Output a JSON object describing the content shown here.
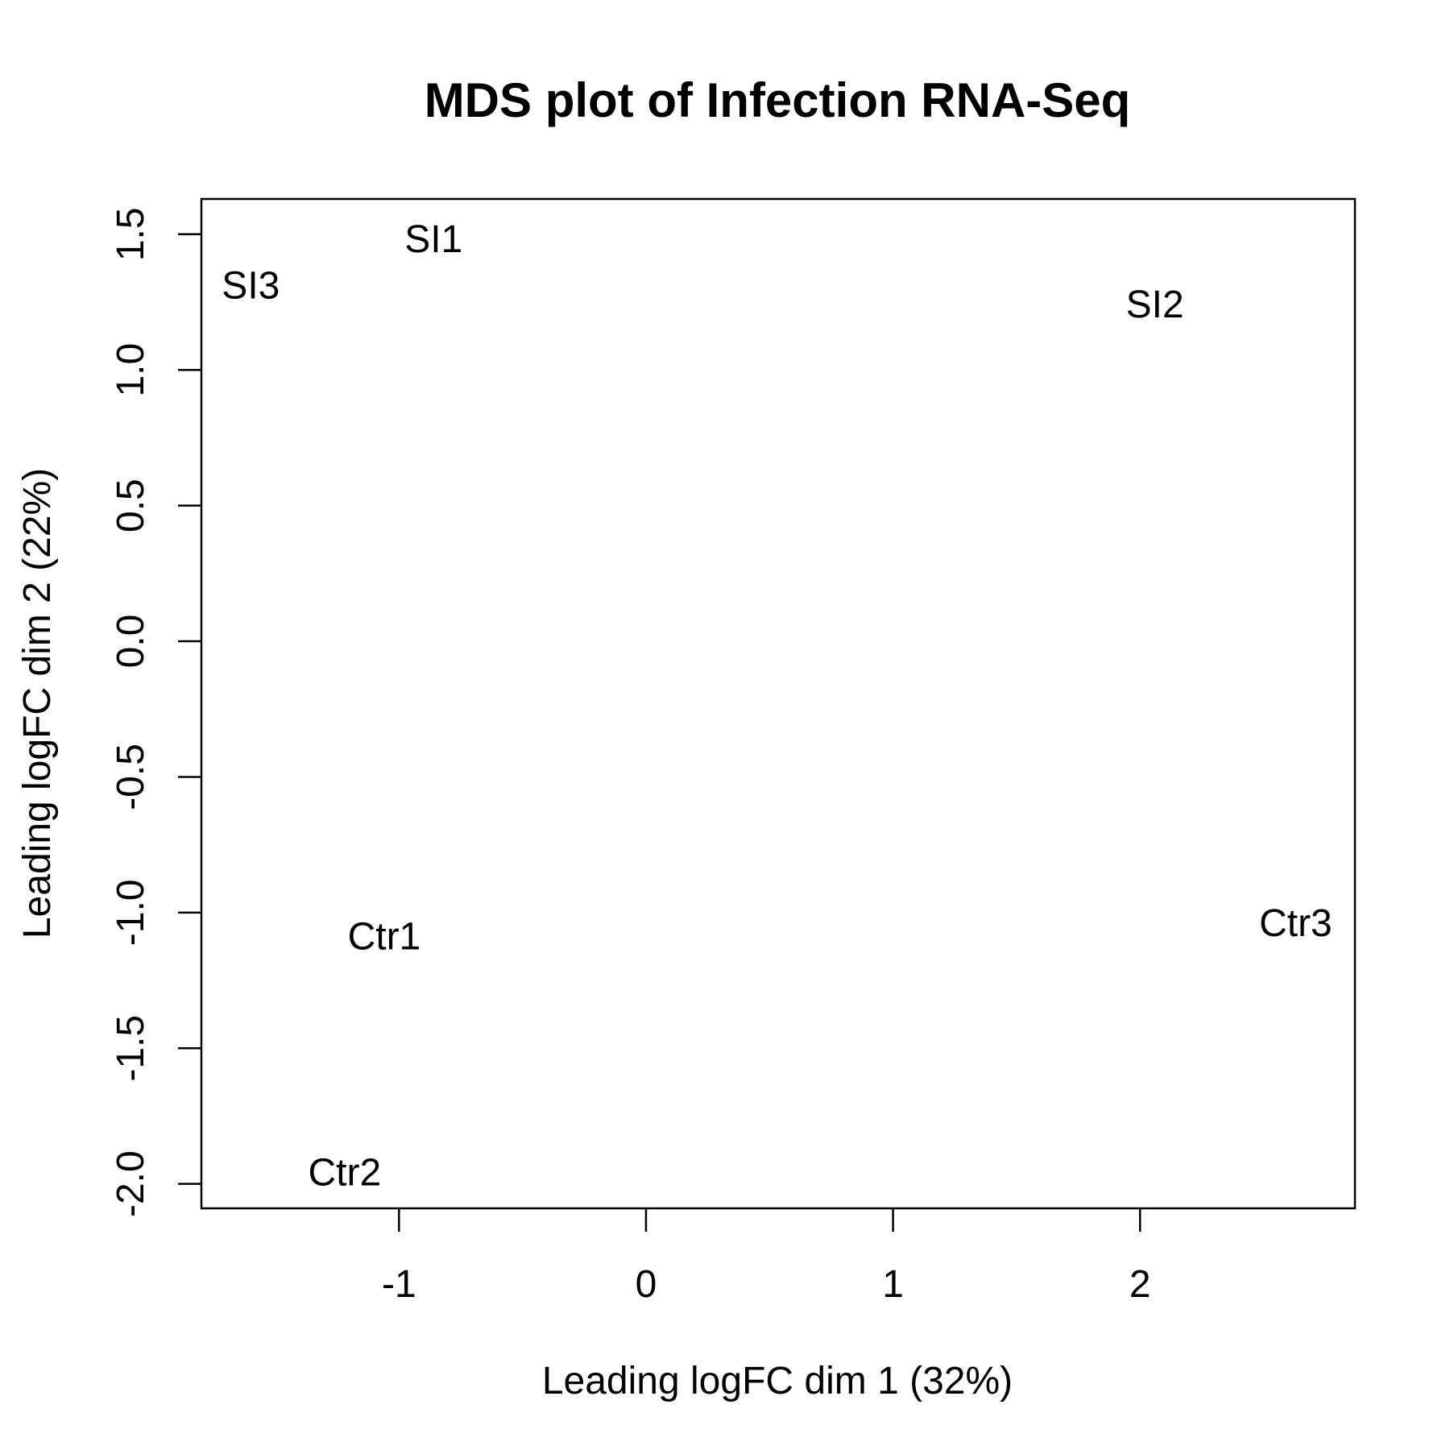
{
  "chart_data": {
    "type": "scatter",
    "title": "MDS plot of Infection RNA-Seq",
    "xlabel": "Leading logFC dim 1 (32%)",
    "ylabel": "Leading logFC dim 2 (22%)",
    "xlim": [
      -1.8,
      2.87
    ],
    "ylim": [
      -2.09,
      1.63
    ],
    "xticks": [
      -1,
      0,
      1,
      2
    ],
    "xtick_labels": [
      "-1",
      "0",
      "1",
      "2"
    ],
    "yticks": [
      -2.0,
      -1.5,
      -1.0,
      -0.5,
      0.0,
      0.5,
      1.0,
      1.5
    ],
    "ytick_labels": [
      "-2.0",
      "-1.5",
      "-1.0",
      "-0.5",
      "0.0",
      "0.5",
      "1.0",
      "1.5"
    ],
    "grid": false,
    "legend": "none",
    "marker": "text-label",
    "points": [
      {
        "label": "SI1",
        "x": -0.86,
        "y": 1.48
      },
      {
        "label": "SI3",
        "x": -1.6,
        "y": 1.31
      },
      {
        "label": "SI2",
        "x": 2.06,
        "y": 1.24
      },
      {
        "label": "Ctr1",
        "x": -1.06,
        "y": -1.09
      },
      {
        "label": "Ctr3",
        "x": 2.63,
        "y": -1.04
      },
      {
        "label": "Ctr2",
        "x": -1.22,
        "y": -1.96
      }
    ]
  }
}
